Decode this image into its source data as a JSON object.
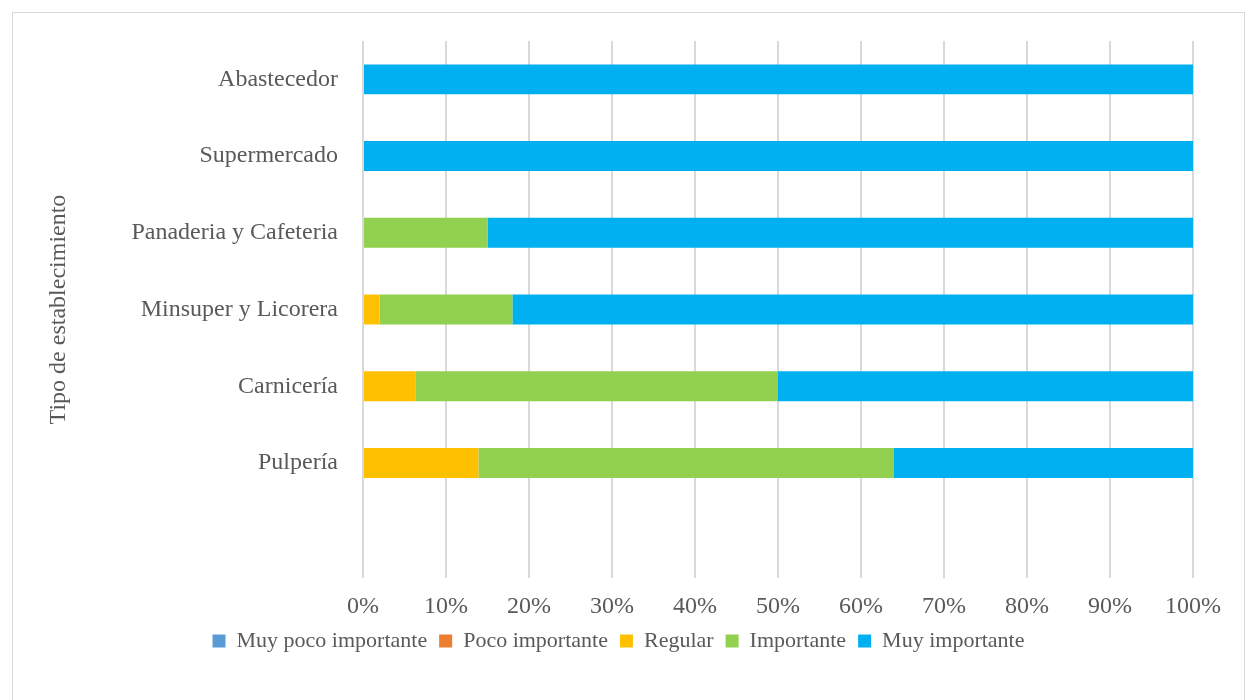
{
  "chart_data": {
    "type": "bar",
    "orientation": "horizontal",
    "stacked": true,
    "ylabel": "Tipo de establecimiento",
    "categories": [
      "Abastecedor",
      "Supermercado",
      "Panaderia y Cafeteria",
      "Minsuper y Licorera",
      "Carnicería",
      "Pulpería",
      null
    ],
    "series": [
      {
        "name": "Muy poco importante",
        "color": "#5b9bd5",
        "values": [
          null,
          null,
          null,
          null,
          null,
          null,
          null
        ]
      },
      {
        "name": "Poco importante",
        "color": "#ed7d31",
        "values": [
          null,
          null,
          null,
          null,
          null,
          null,
          null
        ]
      },
      {
        "name": "Regular",
        "color": "#ffc000",
        "values": [
          null,
          null,
          null,
          2,
          6.3,
          13.9,
          null
        ]
      },
      {
        "name": "Importante",
        "color": "#92d050",
        "values": [
          null,
          null,
          15,
          16,
          43.7,
          50,
          null
        ]
      },
      {
        "name": "Muy importante",
        "color": "#00b0f0",
        "values": [
          100,
          100,
          85,
          82,
          50,
          36.1,
          null
        ]
      }
    ],
    "xlim": [
      0,
      100
    ],
    "xticks": [
      {
        "value": 0,
        "label": "0%"
      },
      {
        "value": 10,
        "label": "10%"
      },
      {
        "value": 20,
        "label": "20%"
      },
      {
        "value": 30,
        "label": "30%"
      },
      {
        "value": 40,
        "label": "40%"
      },
      {
        "value": 50,
        "label": "50%"
      },
      {
        "value": 60,
        "label": "60%"
      },
      {
        "value": 70,
        "label": "70%"
      },
      {
        "value": 80,
        "label": "80%"
      },
      {
        "value": 90,
        "label": "90%"
      },
      {
        "value": 100,
        "label": "100%"
      }
    ],
    "grid": "x",
    "legend": "bottom"
  }
}
